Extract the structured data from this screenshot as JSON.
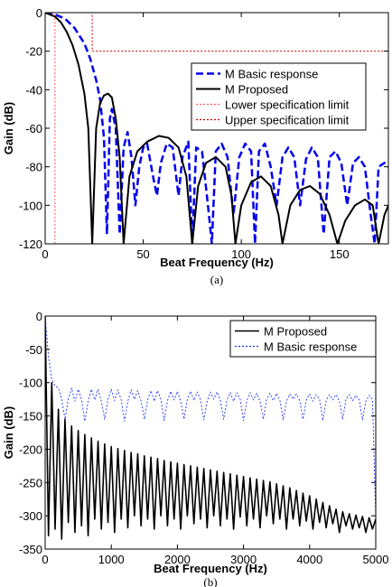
{
  "chart_data": [
    {
      "type": "line",
      "xlabel": "Beat Frequency (Hz)",
      "ylabel": "Gain (dB)",
      "caption": "(a)",
      "xlim": [
        0,
        175
      ],
      "xticks": [
        0,
        50,
        100,
        150
      ],
      "ylim": [
        -120,
        0
      ],
      "yticks": [
        0,
        -20,
        -40,
        -60,
        -80,
        -100,
        -120
      ],
      "legend": "upper right",
      "series": [
        {
          "name": "M Basic response",
          "color": "#0000ee",
          "style": "dashed",
          "line_width": 2.5,
          "x": [
            0,
            5,
            10,
            15,
            20,
            23,
            26,
            28,
            30,
            31.5,
            33,
            34,
            36,
            38,
            40,
            42,
            44,
            46,
            48,
            50,
            52,
            55,
            57,
            59,
            62,
            65,
            68,
            70,
            73,
            75,
            77,
            80,
            83,
            85,
            87,
            90,
            93,
            96,
            99,
            102,
            105,
            107,
            109,
            112,
            115,
            118,
            121,
            124,
            127,
            130,
            133,
            136,
            139,
            142,
            145,
            148,
            151,
            154,
            157,
            160,
            163,
            166,
            168,
            170,
            173,
            175
          ],
          "values": [
            0,
            -1,
            -3,
            -8,
            -16,
            -24,
            -35,
            -45,
            -65,
            -115,
            -55,
            -50,
            -60,
            -115,
            -70,
            -62,
            -75,
            -100,
            -80,
            -70,
            -68,
            -85,
            -95,
            -78,
            -68,
            -70,
            -95,
            -75,
            -67,
            -120,
            -70,
            -72,
            -100,
            -120,
            -72,
            -68,
            -75,
            -105,
            -75,
            -68,
            -72,
            -120,
            -72,
            -68,
            -80,
            -100,
            -75,
            -70,
            -75,
            -100,
            -76,
            -70,
            -75,
            -115,
            -75,
            -72,
            -78,
            -100,
            -78,
            -75,
            -80,
            -105,
            -120,
            -80,
            -78,
            -80
          ]
        },
        {
          "name": "M Proposed",
          "color": "#000000",
          "style": "solid",
          "line_width": 2,
          "x": [
            0,
            5,
            8,
            11,
            14,
            17,
            20,
            22,
            24,
            26,
            28,
            30,
            32,
            34,
            36,
            38,
            40,
            43,
            47,
            52,
            58,
            63,
            68,
            72,
            75,
            78,
            82,
            87,
            92,
            95,
            97,
            100,
            105,
            110,
            115,
            119,
            121,
            125,
            130,
            135,
            140,
            145,
            149,
            153,
            158,
            163,
            167,
            170,
            173,
            175
          ],
          "values": [
            0,
            -2,
            -5,
            -10,
            -17,
            -27,
            -42,
            -60,
            -120,
            -60,
            -47,
            -43,
            -42,
            -44,
            -55,
            -75,
            -120,
            -85,
            -72,
            -67,
            -64,
            -65,
            -70,
            -85,
            -120,
            -90,
            -78,
            -75,
            -80,
            -95,
            -120,
            -100,
            -88,
            -85,
            -90,
            -105,
            -120,
            -100,
            -92,
            -90,
            -94,
            -105,
            -120,
            -108,
            -100,
            -97,
            -100,
            -120,
            -105,
            -100
          ]
        },
        {
          "name": "Lower specification limit",
          "color": "#ff5555",
          "style": "dotted",
          "line_width": 1,
          "x": [
            5,
            5
          ],
          "values": [
            -120,
            0
          ]
        },
        {
          "name": "Upper specification limit",
          "color": "#cc0000",
          "style": "dotted",
          "line_width": 1,
          "x": [
            5,
            24,
            24,
            175
          ],
          "values": [
            0,
            0,
            -20,
            -20
          ]
        }
      ]
    },
    {
      "type": "line",
      "xlabel": "Beat Frequency (Hz)",
      "ylabel": "Gain (dB)",
      "caption": "(b)",
      "xlim": [
        0,
        5000
      ],
      "xticks": [
        0,
        1000,
        2000,
        3000,
        4000,
        5000
      ],
      "ylim": [
        -350,
        0
      ],
      "yticks": [
        0,
        -50,
        -100,
        -150,
        -200,
        -250,
        -300,
        -350
      ],
      "legend": "upper right",
      "x": [
        0,
        50,
        100,
        150,
        200,
        250,
        300,
        350,
        400,
        450,
        500,
        550,
        600,
        650,
        700,
        750,
        800,
        850,
        900,
        950,
        1000,
        1050,
        1100,
        1150,
        1200,
        1250,
        1300,
        1350,
        1400,
        1450,
        1500,
        1550,
        1600,
        1650,
        1700,
        1750,
        1800,
        1850,
        1900,
        1950,
        2000,
        2050,
        2100,
        2150,
        2200,
        2250,
        2300,
        2350,
        2400,
        2450,
        2500,
        2550,
        2600,
        2650,
        2700,
        2750,
        2800,
        2850,
        2900,
        2950,
        3000,
        3050,
        3100,
        3150,
        3200,
        3250,
        3300,
        3350,
        3400,
        3450,
        3500,
        3550,
        3600,
        3650,
        3700,
        3750,
        3800,
        3850,
        3900,
        3950,
        4000,
        4050,
        4100,
        4150,
        4200,
        4250,
        4300,
        4350,
        4400,
        4450,
        4500,
        4550,
        4600,
        4650,
        4700,
        4750,
        4800,
        4850,
        4900,
        4950,
        5000
      ],
      "series": [
        {
          "name": "M Proposed",
          "color": "#000000",
          "style": "solid",
          "line_width": 1.6,
          "values": [
            0,
            -330,
            -100,
            -320,
            -140,
            -335,
            -155,
            -310,
            -165,
            -325,
            -172,
            -315,
            -178,
            -330,
            -183,
            -305,
            -188,
            -320,
            -192,
            -310,
            -196,
            -325,
            -199,
            -305,
            -202,
            -318,
            -205,
            -300,
            -207,
            -315,
            -210,
            -305,
            -212,
            -320,
            -214,
            -300,
            -217,
            -315,
            -219,
            -305,
            -221,
            -320,
            -223,
            -300,
            -225,
            -312,
            -227,
            -305,
            -229,
            -318,
            -231,
            -300,
            -233,
            -315,
            -235,
            -305,
            -237,
            -320,
            -239,
            -302,
            -241,
            -315,
            -243,
            -305,
            -245,
            -318,
            -247,
            -300,
            -249,
            -312,
            -252,
            -305,
            -255,
            -320,
            -258,
            -305,
            -262,
            -315,
            -266,
            -308,
            -270,
            -320,
            -275,
            -310,
            -280,
            -318,
            -285,
            -312,
            -290,
            -325,
            -294,
            -315,
            -297,
            -320,
            -299,
            -318,
            -301,
            -325,
            -303,
            -320,
            -305
          ]
        },
        {
          "name": "M Basic response",
          "color": "#2233ee",
          "style": "dotted",
          "line_width": 0.9,
          "values": [
            0,
            -60,
            -95,
            -105,
            -108,
            -125,
            -155,
            -125,
            -108,
            -128,
            -110,
            -125,
            -158,
            -128,
            -110,
            -126,
            -110,
            -128,
            -155,
            -125,
            -110,
            -127,
            -111,
            -126,
            -158,
            -128,
            -111,
            -125,
            -112,
            -127,
            -155,
            -126,
            -112,
            -128,
            -112,
            -125,
            -157,
            -127,
            -113,
            -126,
            -113,
            -128,
            -155,
            -125,
            -113,
            -127,
            -114,
            -126,
            -156,
            -128,
            -114,
            -125,
            -114,
            -127,
            -155,
            -126,
            -115,
            -128,
            -115,
            -125,
            -157,
            -127,
            -115,
            -126,
            -116,
            -128,
            -155,
            -125,
            -116,
            -127,
            -116,
            -126,
            -156,
            -128,
            -117,
            -125,
            -117,
            -127,
            -155,
            -126,
            -117,
            -128,
            -118,
            -125,
            -157,
            -127,
            -118,
            -126,
            -118,
            -128,
            -155,
            -125,
            -118,
            -127,
            -119,
            -126,
            -156,
            -128,
            -119,
            -125,
            -300
          ]
        }
      ]
    }
  ]
}
